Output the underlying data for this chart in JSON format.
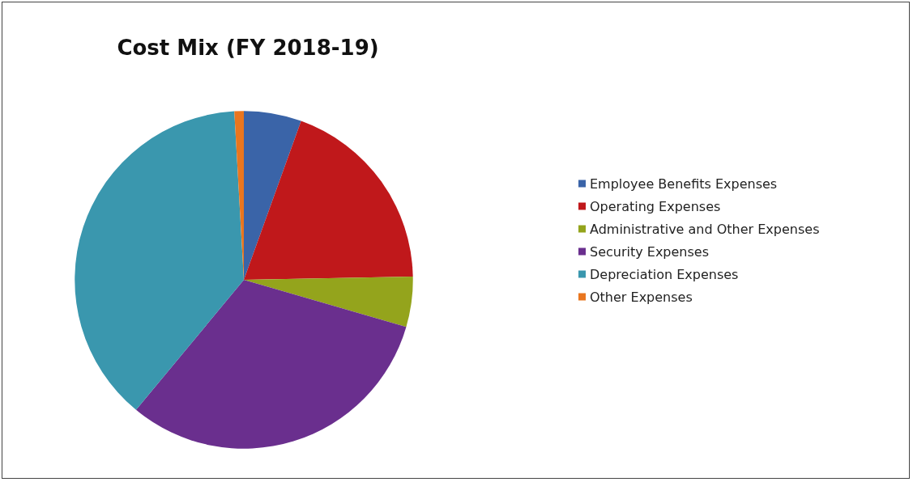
{
  "chart_data": {
    "type": "pie",
    "title": "Cost Mix (FY 2018-19)",
    "categories": [
      "Employee Benefits Expenses",
      "Operating Expenses",
      "Administrative and Other Expenses",
      "Security Expenses",
      "Depreciation Expenses",
      "Other Expenses"
    ],
    "values": [
      5.5,
      19.2,
      4.8,
      31.5,
      38.1,
      0.9
    ],
    "colors": [
      "#3a64a8",
      "#c0181b",
      "#94a41c",
      "#6a2f8e",
      "#3a97ae",
      "#e9761f"
    ],
    "legend": "right"
  }
}
